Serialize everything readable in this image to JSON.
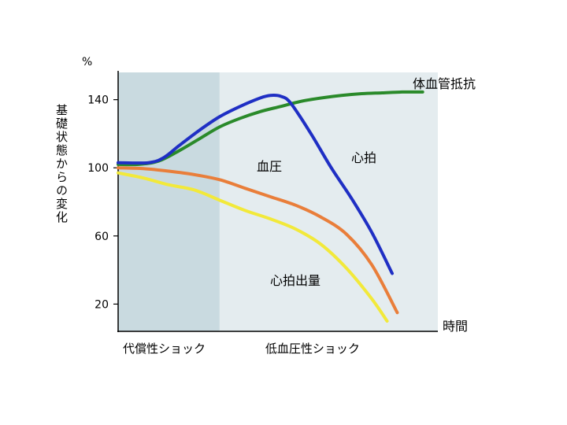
{
  "chart_data": {
    "type": "line",
    "unit_label": "%",
    "ylabel": "基礎状態からの変化",
    "xlabel": "時間",
    "ylim": [
      4,
      156
    ],
    "yticks": [
      20,
      60,
      100,
      140
    ],
    "phases": [
      {
        "label": "代償性ショック",
        "x_range": [
          0,
          20
        ],
        "color": "#c9dae0"
      },
      {
        "label": "低血圧性ショック",
        "x_range": [
          20,
          63
        ],
        "color": "#e4ecef"
      }
    ],
    "xlim": [
      0,
      63
    ],
    "series": [
      {
        "name": "体血管抵抗",
        "color": "#2a8a2a",
        "x": [
          0,
          4,
          8,
          12,
          16,
          20,
          24,
          28,
          32,
          36,
          40,
          44,
          48,
          52,
          56,
          60
        ],
        "y": [
          102,
          102,
          104,
          110,
          117,
          124,
          129,
          133,
          136,
          139,
          141,
          142.5,
          143.5,
          144,
          144.5,
          144.5
        ]
      },
      {
        "name": "心拍",
        "color": "#1f2fc4",
        "x": [
          0,
          6,
          9,
          12,
          16,
          20,
          24,
          28,
          30,
          32,
          34,
          38,
          42,
          46,
          50,
          54
        ],
        "y": [
          103,
          103,
          106,
          113,
          122,
          130,
          136,
          141,
          142.5,
          142,
          138,
          120,
          100,
          82,
          62,
          38
        ]
      },
      {
        "name": "血圧",
        "color": "#e97e3a",
        "x": [
          0,
          5,
          10,
          15,
          20,
          25,
          30,
          35,
          40,
          45,
          50,
          55
        ],
        "y": [
          100,
          99.5,
          98,
          96,
          93,
          88,
          83,
          78,
          71,
          61,
          43,
          15
        ]
      },
      {
        "name": "心拍出量",
        "color": "#f2e93a",
        "x": [
          0,
          5,
          10,
          15,
          20,
          25,
          30,
          35,
          40,
          45,
          50,
          53
        ],
        "y": [
          97,
          94,
          90,
          87,
          81,
          75,
          70,
          64,
          55,
          41,
          23,
          10
        ]
      }
    ]
  }
}
